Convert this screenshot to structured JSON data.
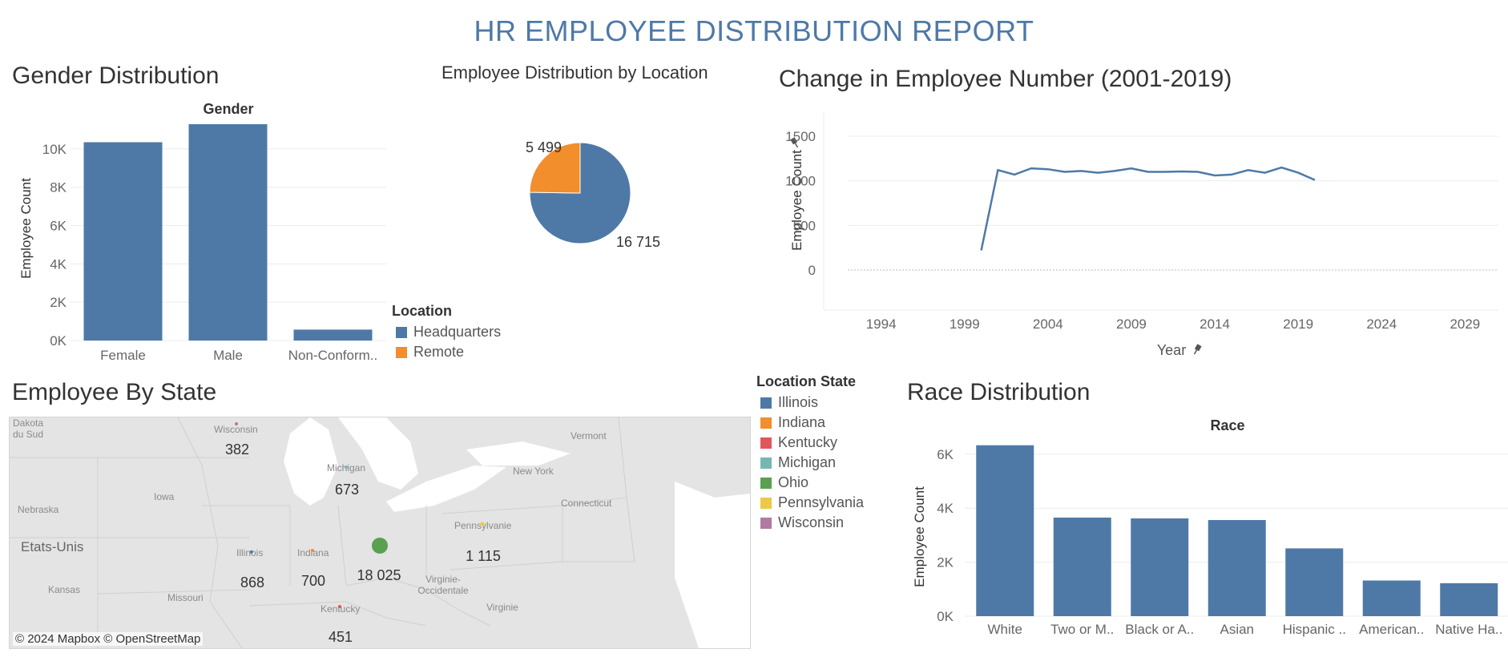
{
  "title": "HR EMPLOYEE DISTRIBUTION REPORT",
  "gender": {
    "section_title": "Gender Distribution",
    "header": "Gender",
    "y_label": "Employee Count",
    "ticks": [
      "0K",
      "2K",
      "4K",
      "6K",
      "8K",
      "10K"
    ]
  },
  "location": {
    "section_title": "Employee Distribution by Location",
    "legend_title": "Location",
    "label_hq": "16 715",
    "label_remote": "5 499"
  },
  "trend": {
    "section_title": "Change in Employee Number (2001-2019)",
    "y_label": "Employee Count",
    "x_label": "Year",
    "pin_icon": "pin-icon"
  },
  "map": {
    "section_title": "Employee By State",
    "legend_title": "Location State",
    "credit": "© 2024 Mapbox © OpenStreetMap",
    "geo_labels": [
      {
        "text": "Dakota du Sud"
      },
      {
        "text": "Wisconsin"
      },
      {
        "text": "Michigan"
      },
      {
        "text": "Vermont"
      },
      {
        "text": "New York"
      },
      {
        "text": "Connecticut"
      },
      {
        "text": "Nebraska"
      },
      {
        "text": "Iowa"
      },
      {
        "text": "Etats-Unis"
      },
      {
        "text": "Illinois"
      },
      {
        "text": "Indiana"
      },
      {
        "text": "Pennsylvanie"
      },
      {
        "text": "Virginie-Occidentale"
      },
      {
        "text": "Kansas"
      },
      {
        "text": "Missouri"
      },
      {
        "text": "Kentucky"
      },
      {
        "text": "Virginie"
      }
    ],
    "states": [
      {
        "name": "Illinois",
        "color": "#4e79a7",
        "count": "868",
        "value": 868
      },
      {
        "name": "Indiana",
        "color": "#f28e2b",
        "count": "700",
        "value": 700
      },
      {
        "name": "Kentucky",
        "color": "#e15759",
        "count": "451",
        "value": 451
      },
      {
        "name": "Michigan",
        "color": "#76b7b2",
        "count": "673",
        "value": 673
      },
      {
        "name": "Ohio",
        "color": "#59a14f",
        "count": "18 025",
        "value": 18025
      },
      {
        "name": "Pennsylvania",
        "color": "#edc948",
        "count": "1 115",
        "value": 1115
      },
      {
        "name": "Wisconsin",
        "color": "#b07aa1",
        "count": "382",
        "value": 382
      }
    ]
  },
  "race": {
    "section_title": "Race Distribution",
    "header": "Race",
    "y_label": "Employee Count",
    "ticks": [
      "0K",
      "2K",
      "4K",
      "6K"
    ]
  },
  "chart_data": [
    {
      "type": "bar",
      "title": "Gender Distribution",
      "xlabel": "Gender",
      "ylabel": "Employee Count",
      "categories": [
        "Female",
        "Male",
        "Non-Conform.."
      ],
      "values": [
        10350,
        11290,
        570
      ],
      "ylim": [
        0,
        11500
      ],
      "color": "#4e79a7"
    },
    {
      "type": "pie",
      "title": "Employee Distribution by Location",
      "categories": [
        "Headquarters",
        "Remote"
      ],
      "values": [
        16715,
        5499
      ],
      "colors": [
        "#4e79a7",
        "#f28e2b"
      ]
    },
    {
      "type": "line",
      "title": "Change in Employee Number (2001-2019)",
      "xlabel": "Year",
      "ylabel": "Employee Count",
      "x": [
        2000,
        2001,
        2002,
        2003,
        2004,
        2005,
        2006,
        2007,
        2008,
        2009,
        2010,
        2011,
        2012,
        2013,
        2014,
        2015,
        2016,
        2017,
        2018,
        2019,
        2020
      ],
      "y": [
        220,
        1120,
        1070,
        1140,
        1130,
        1100,
        1110,
        1090,
        1110,
        1140,
        1100,
        1100,
        1105,
        1100,
        1060,
        1070,
        1120,
        1090,
        1150,
        1090,
        1010
      ],
      "xticks": [
        "1994",
        "1999",
        "2004",
        "2009",
        "2014",
        "2019",
        "2024",
        "2029"
      ],
      "yticks": [
        "0",
        "500",
        "1000",
        "1500"
      ],
      "xlim": [
        1994,
        2029
      ],
      "ylim": [
        0,
        1500
      ],
      "color": "#4e79a7"
    },
    {
      "type": "bar",
      "title": "Race Distribution",
      "xlabel": "Race",
      "ylabel": "Employee Count",
      "categories": [
        "White",
        "Two or M..",
        "Black or A..",
        "Asian",
        "Hispanic ..",
        "American..",
        "Native Ha.."
      ],
      "values": [
        6330,
        3650,
        3620,
        3560,
        2510,
        1320,
        1220
      ],
      "ylim": [
        0,
        6500
      ],
      "color": "#4e79a7"
    }
  ]
}
